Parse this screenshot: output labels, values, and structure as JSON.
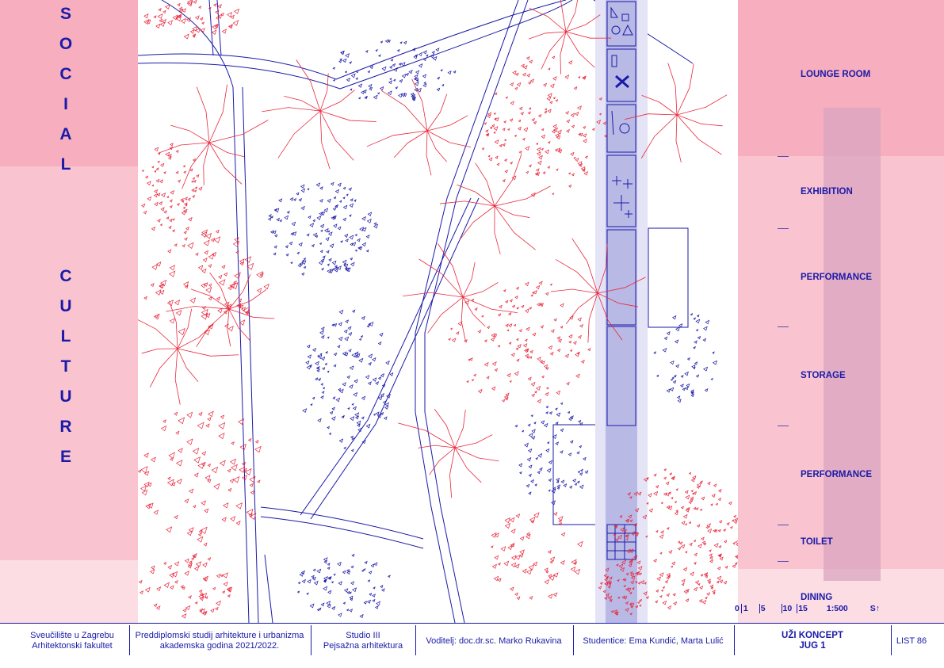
{
  "left": {
    "word1": [
      "S",
      "O",
      "C",
      "I",
      "A",
      "L"
    ],
    "word2": [
      "C",
      "U",
      "L",
      "T",
      "U",
      "R",
      "E"
    ]
  },
  "right": {
    "programs": [
      "LOUNGE ROOM",
      "EXHIBITION",
      "PERFORMANCE",
      "STORAGE",
      "PERFORMANCE",
      "TOILET",
      "DINING"
    ]
  },
  "scale": {
    "ticks": [
      "0",
      "1",
      "5",
      "10",
      "15"
    ],
    "ratio": "1:500",
    "north": "S↑"
  },
  "footer": {
    "university": "Sveučilište u Zagrebu",
    "faculty": "Arhitektonski fakultet",
    "program": "Preddiplomski studij arhitekture i urbanizma",
    "year": "akademska godina 2021/2022.",
    "studio": "Studio III",
    "course": "Pejsažna arhitektura",
    "mentor": "Voditelj: doc.dr.sc. Marko Rukavina",
    "students": "Studentice: Ema Kundić, Marta Lulić",
    "concept": "UŽI KONCEPT",
    "area": "JUG 1",
    "sheet": "LIST 86"
  },
  "colors": {
    "blue": "#1a1aa8",
    "pink_strong": "#f7aebf",
    "pink_mid": "#f9c4cf",
    "pink_light": "#fcdde4",
    "red": "#e8283c",
    "corridor": "#b9b9e6"
  }
}
